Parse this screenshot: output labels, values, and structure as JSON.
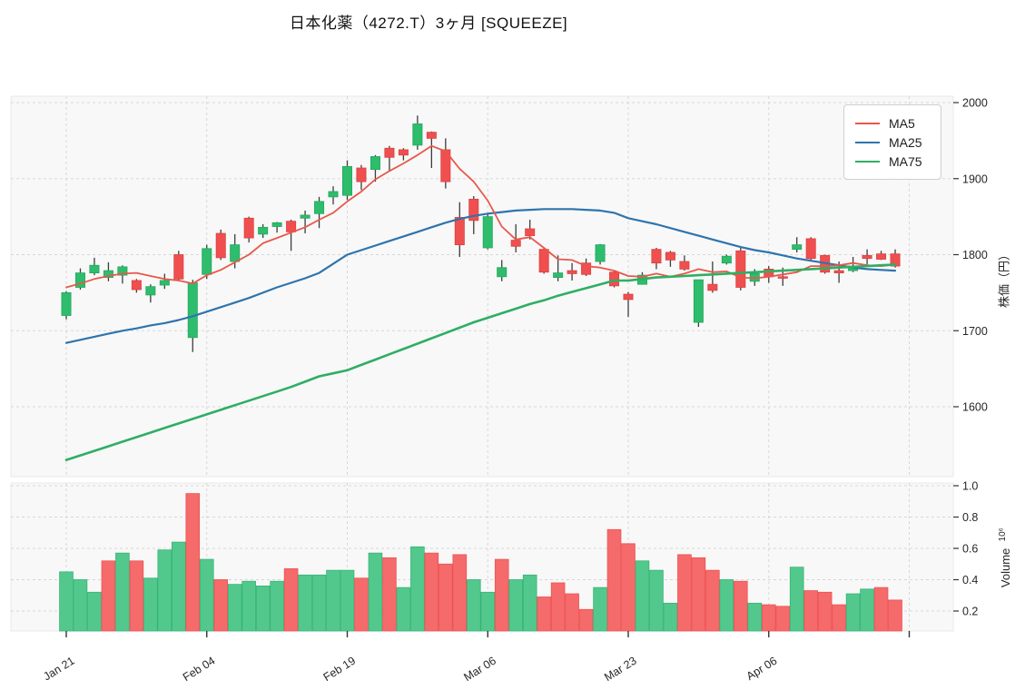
{
  "title": "日本化薬（4272.T）3ヶ月 [SQUEEZE]",
  "legend": [
    {
      "label": "MA5",
      "color": "#e8574b"
    },
    {
      "label": "MA25",
      "color": "#2e74ad"
    },
    {
      "label": "MA75",
      "color": "#2fae63"
    }
  ],
  "axes": {
    "price_axis_label": "株価（円）",
    "volume_axis_label": "Volume",
    "volume_axis_exp": "10⁶",
    "price_ticks": [
      "2000",
      "1900",
      "1800",
      "1700",
      "1600"
    ],
    "volume_ticks": [
      "1.0",
      "0.8",
      "0.6",
      "0.4",
      "0.2"
    ],
    "x_ticks": [
      "Jan 21",
      "Feb 04",
      "Feb 19",
      "Mar 06",
      "Mar 23",
      "Apr 06",
      ""
    ]
  },
  "colors": {
    "candle_up": "#2ebc6d",
    "candle_down": "#f04f4f",
    "candle_up_edge": "#24a85d",
    "candle_down_edge": "#dd4040",
    "volume_up": "#53c88d",
    "volume_down": "#f56a6a",
    "volume_up_edge": "#36b377",
    "volume_down_edge": "#ee5252",
    "wick": "#3d3d3d",
    "ma5": "#e8574b",
    "ma25": "#2e74ad",
    "ma75": "#2fae63",
    "panel_bg": "#f8f8f8",
    "panel_border": "#e9e9e9",
    "grid": "#d7d7d7",
    "tick_text": "#262626"
  },
  "chart_data": {
    "type": "candlestick",
    "title": "日本化薬（4272.T）3ヶ月 [SQUEEZE]",
    "legend_entries": [
      "MA5",
      "MA25",
      "MA75"
    ],
    "x_axis": {
      "tick_labels": [
        "Jan 21",
        "Feb 04",
        "Feb 19",
        "Mar 06",
        "Mar 23",
        "Apr 06",
        ""
      ],
      "tick_candle_indices": [
        0,
        10,
        20,
        30,
        40,
        50,
        60
      ]
    },
    "price_axis": {
      "label": "株価（円）",
      "ticks": [
        2000,
        1900,
        1800,
        1700,
        1600
      ],
      "range": [
        1510,
        2007
      ],
      "grid": true
    },
    "volume_axis": {
      "label": "Volume 10⁶",
      "ticks": [
        1.0,
        0.8,
        0.6,
        0.4,
        0.2
      ],
      "range": [
        0.07,
        1.06
      ],
      "unit": 1000000,
      "grid": true
    },
    "candles": {
      "open": [
        1720,
        1757,
        1776,
        1770,
        1773,
        1766,
        1747,
        1760,
        1800,
        1691,
        1774,
        1828,
        1791,
        1848,
        1827,
        1837,
        1844,
        1848,
        1854,
        1876,
        1878,
        1914,
        1912,
        1940,
        1938,
        1944,
        1961,
        1938,
        1849,
        1873,
        1809,
        1771,
        1819,
        1834,
        1807,
        1770,
        1779,
        1789,
        1791,
        1777,
        1748,
        1761,
        1807,
        1803,
        1791,
        1711,
        1761,
        1789,
        1805,
        1765,
        1781,
        1771,
        1807,
        1821,
        1799,
        1779,
        1779,
        1799,
        1801,
        1801
      ],
      "high": [
        1752,
        1782,
        1796,
        1790,
        1786,
        1768,
        1761,
        1775,
        1805,
        1767,
        1813,
        1833,
        1827,
        1850,
        1840,
        1843,
        1846,
        1858,
        1876,
        1890,
        1924,
        1918,
        1931,
        1943,
        1940,
        1983,
        1962,
        1953,
        1869,
        1877,
        1855,
        1793,
        1840,
        1846,
        1808,
        1799,
        1789,
        1795,
        1814,
        1778,
        1751,
        1777,
        1809,
        1805,
        1799,
        1767,
        1791,
        1800,
        1809,
        1781,
        1785,
        1783,
        1823,
        1823,
        1800,
        1791,
        1797,
        1807,
        1805,
        1807
      ],
      "low": [
        1715,
        1754,
        1773,
        1765,
        1762,
        1750,
        1737,
        1755,
        1766,
        1672,
        1768,
        1793,
        1782,
        1816,
        1822,
        1829,
        1805,
        1828,
        1835,
        1866,
        1872,
        1885,
        1896,
        1910,
        1924,
        1938,
        1914,
        1887,
        1797,
        1827,
        1807,
        1765,
        1803,
        1820,
        1775,
        1765,
        1766,
        1772,
        1787,
        1757,
        1718,
        1761,
        1781,
        1784,
        1779,
        1705,
        1750,
        1787,
        1753,
        1759,
        1763,
        1759,
        1803,
        1793,
        1775,
        1763,
        1777,
        1787,
        1793,
        1783
      ],
      "close": [
        1750,
        1776,
        1786,
        1779,
        1784,
        1754,
        1758,
        1766,
        1768,
        1763,
        1808,
        1796,
        1813,
        1822,
        1836,
        1842,
        1830,
        1852,
        1870,
        1883,
        1916,
        1896,
        1929,
        1928,
        1931,
        1972,
        1953,
        1896,
        1813,
        1845,
        1850,
        1783,
        1811,
        1825,
        1777,
        1776,
        1775,
        1774,
        1813,
        1759,
        1741,
        1773,
        1789,
        1793,
        1781,
        1767,
        1753,
        1798,
        1757,
        1775,
        1771,
        1769,
        1813,
        1795,
        1777,
        1776,
        1785,
        1795,
        1794,
        1785
      ]
    },
    "volume": {
      "values": [
        0.45,
        0.4,
        0.32,
        0.52,
        0.57,
        0.52,
        0.41,
        0.59,
        0.64,
        0.95,
        0.53,
        0.4,
        0.37,
        0.39,
        0.36,
        0.39,
        0.47,
        0.43,
        0.43,
        0.46,
        0.46,
        0.41,
        0.57,
        0.54,
        0.35,
        0.61,
        0.57,
        0.5,
        0.56,
        0.4,
        0.32,
        0.53,
        0.4,
        0.43,
        0.29,
        0.38,
        0.31,
        0.21,
        0.35,
        0.72,
        0.63,
        0.52,
        0.46,
        0.25,
        0.56,
        0.54,
        0.46,
        0.4,
        0.39,
        0.25,
        0.24,
        0.23,
        0.48,
        0.33,
        0.32,
        0.24,
        0.31,
        0.34,
        0.35,
        0.27
      ],
      "colors": [
        "g",
        "g",
        "g",
        "r",
        "g",
        "r",
        "g",
        "g",
        "g",
        "r",
        "g",
        "r",
        "g",
        "g",
        "g",
        "g",
        "r",
        "g",
        "g",
        "g",
        "g",
        "r",
        "g",
        "r",
        "g",
        "g",
        "r",
        "r",
        "r",
        "g",
        "g",
        "r",
        "g",
        "g",
        "r",
        "r",
        "r",
        "r",
        "g",
        "r",
        "r",
        "g",
        "g",
        "g",
        "r",
        "r",
        "r",
        "g",
        "r",
        "g",
        "r",
        "r",
        "g",
        "r",
        "r",
        "r",
        "g",
        "g",
        "r",
        "r"
      ]
    },
    "ma5": [
      1757,
      1762,
      1768,
      1772,
      1775,
      1776,
      1772,
      1768,
      1766,
      1762,
      1773,
      1780,
      1790,
      1800,
      1815,
      1822,
      1829,
      1836,
      1846,
      1855,
      1870,
      1883,
      1899,
      1910,
      1920,
      1931,
      1943,
      1936,
      1913,
      1896,
      1871,
      1837,
      1820,
      1823,
      1809,
      1794,
      1793,
      1785,
      1783,
      1779,
      1772,
      1771,
      1775,
      1771,
      1775,
      1781,
      1777,
      1778,
      1770,
      1769,
      1771,
      1774,
      1777,
      1785,
      1785,
      1786,
      1789,
      1786,
      1785,
      1787
    ],
    "ma25": [
      1684,
      1688,
      1692,
      1696,
      1700,
      1703,
      1707,
      1710,
      1714,
      1719,
      1725,
      1731,
      1737,
      1743,
      1750,
      1757,
      1763,
      1769,
      1776,
      1788,
      1800,
      1806,
      1812,
      1818,
      1824,
      1830,
      1836,
      1842,
      1847,
      1851,
      1854,
      1856,
      1858,
      1859,
      1860,
      1860,
      1860,
      1859,
      1858,
      1855,
      1848,
      1844,
      1840,
      1835,
      1830,
      1825,
      1820,
      1815,
      1810,
      1806,
      1803,
      1799,
      1795,
      1792,
      1789,
      1786,
      1783,
      1781,
      1780,
      1779
    ],
    "ma75": [
      1530,
      1536,
      1542,
      1548,
      1554,
      1560,
      1566,
      1572,
      1578,
      1584,
      1590,
      1596,
      1602,
      1608,
      1614,
      1620,
      1626,
      1633,
      1640,
      1644,
      1648,
      1655,
      1662,
      1669,
      1676,
      1683,
      1690,
      1697,
      1704,
      1711,
      1717,
      1723,
      1729,
      1735,
      1740,
      1746,
      1751,
      1756,
      1761,
      1766,
      1766,
      1768,
      1770,
      1771,
      1772,
      1773,
      1774,
      1775,
      1776,
      1777,
      1778,
      1779,
      1780,
      1781,
      1782,
      1783,
      1784,
      1785,
      1786,
      1787
    ]
  }
}
